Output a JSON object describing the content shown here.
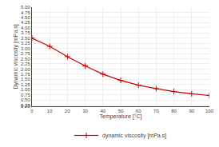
{
  "chart_data": {
    "type": "line",
    "xlabel": "Temperature [°C]",
    "ylabel": "Dynamic viscosity [mPa.s]",
    "x": [
      0,
      10,
      20,
      30,
      40,
      50,
      60,
      70,
      80,
      90,
      100
    ],
    "series": [
      {
        "name": "dynamic viscosity [mPa.s]",
        "color": "#cc0000",
        "marker": "plus",
        "values": [
          3.5,
          3.1,
          2.6,
          2.15,
          1.75,
          1.45,
          1.22,
          1.05,
          0.91,
          0.8,
          0.72
        ]
      }
    ],
    "xlim": [
      0,
      100
    ],
    "ylim": [
      0.2,
      5.0
    ],
    "xticks": [
      0,
      10,
      20,
      30,
      40,
      50,
      60,
      70,
      80,
      90,
      100
    ],
    "yticks": [
      {
        "value": 0.2,
        "label": "0.20"
      },
      {
        "value": 0.25,
        "label": "0.25"
      },
      {
        "value": 0.5,
        "label": "0.50"
      },
      {
        "value": 0.75,
        "label": "0.75"
      },
      {
        "value": 1.0,
        "label": "1.00"
      },
      {
        "value": 1.25,
        "label": "1.25"
      },
      {
        "value": 1.5,
        "label": "1.50"
      },
      {
        "value": 1.75,
        "label": "1.75"
      },
      {
        "value": 2.0,
        "label": "2.00"
      },
      {
        "value": 2.25,
        "label": "2.25"
      },
      {
        "value": 2.5,
        "label": "2.50"
      },
      {
        "value": 2.75,
        "label": "2.75"
      },
      {
        "value": 3.0,
        "label": "3.00"
      },
      {
        "value": 3.25,
        "label": "3.25"
      },
      {
        "value": 3.5,
        "label": "3.50"
      },
      {
        "value": 3.75,
        "label": "3.75"
      },
      {
        "value": 4.0,
        "label": "4.00"
      },
      {
        "value": 4.25,
        "label": "4.25"
      },
      {
        "value": 4.5,
        "label": "4.50"
      },
      {
        "value": 4.75,
        "label": "4.75"
      },
      {
        "value": 5.0,
        "label": "5.00"
      }
    ],
    "grid": true,
    "legend": "bottom"
  }
}
